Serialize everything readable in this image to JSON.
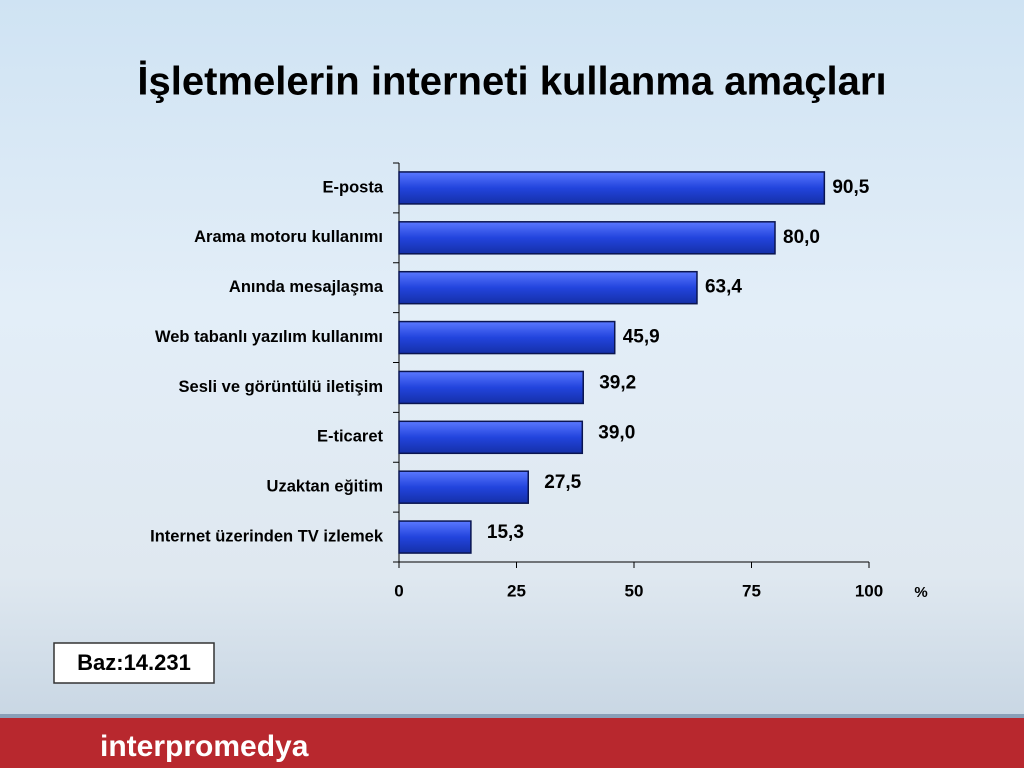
{
  "chart_data": {
    "type": "bar",
    "orientation": "horizontal",
    "title": "İşletmelerin interneti kullanma amaçları",
    "categories": [
      "E-posta",
      "Arama  motoru kullanımı",
      "Anında mesajlaşma",
      "Web tabanlı yazılım kullanımı",
      "Sesli ve görüntülü iletişim",
      "E-ticaret",
      "Uzaktan eğitim",
      "Internet üzerinden TV izlemek"
    ],
    "values": [
      90.5,
      80.0,
      63.4,
      45.9,
      39.2,
      39.0,
      27.5,
      15.3
    ],
    "value_labels": [
      "90,5",
      "80,0",
      "63,4",
      "45,9",
      "39,2",
      "39,0",
      "27,5",
      "15,3"
    ],
    "color": "#2244dd",
    "xlim": [
      0,
      100
    ],
    "xticks": [
      0,
      25,
      50,
      75,
      100
    ],
    "xlabel": "%"
  },
  "footer": {
    "base_note": "Baz:14.231",
    "logo": "interpromedya"
  }
}
